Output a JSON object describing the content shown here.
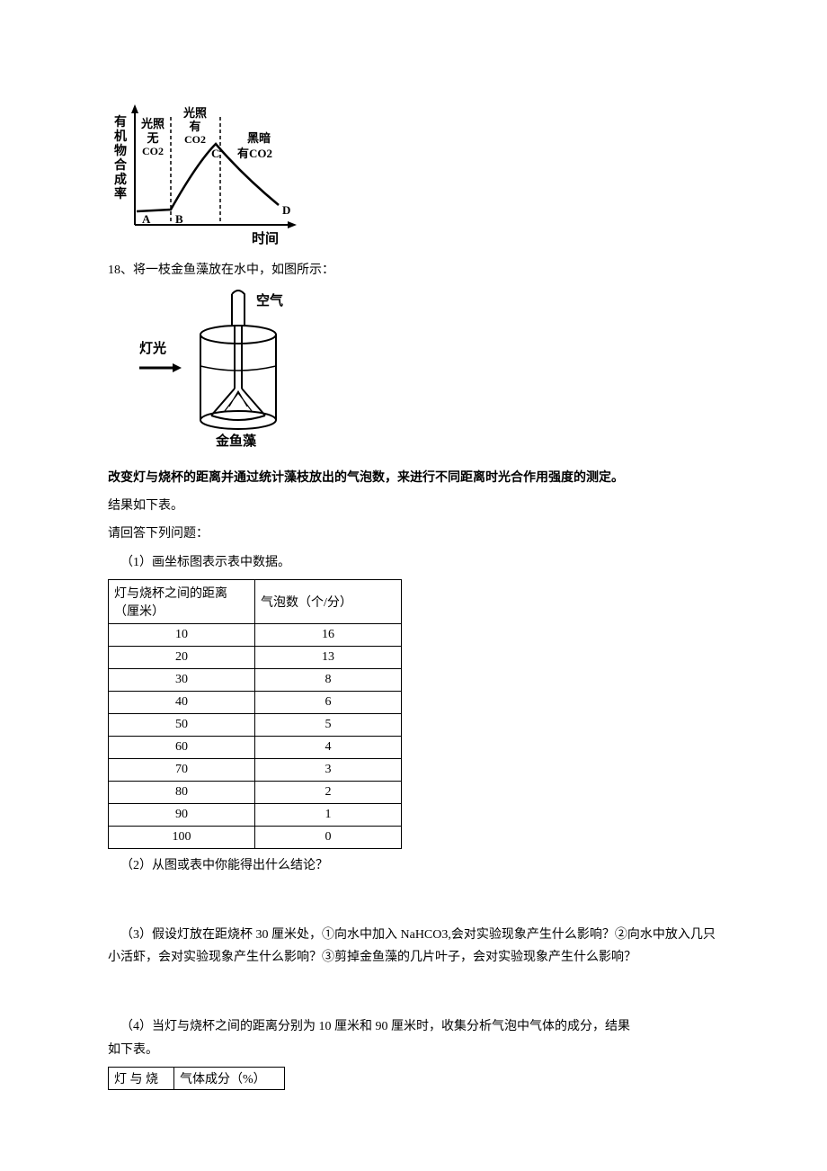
{
  "chart1": {
    "y_axis_label": "有机物合成率",
    "x_axis_label": "时间",
    "region1_top": "光照",
    "region1_bottom": "无",
    "region1_sub": "CO2",
    "region2_top": "光照",
    "region2_mid": "有",
    "region2_sub": "CO2",
    "region3_top": "黑暗",
    "region3_bottom": "有CO2",
    "pointA": "A",
    "pointB": "B",
    "pointC": "C",
    "pointD": "D"
  },
  "q18_intro": "18、将一枝金鱼藻放在水中，如图所示：",
  "apparatus": {
    "label_air": "空气",
    "label_light": "灯光",
    "label_algae": "金鱼藻"
  },
  "line_bold": "改变灯与烧杯的距离并通过统计藻枝放出的气泡数，来进行不同距离时光合作用强度的测定。",
  "line_result": "结果如下表。",
  "line_please": "请回答下列问题：",
  "q1": "（1）画坐标图表示表中数据。",
  "table1": {
    "head_col1_line1": "灯与烧杯之间的距离",
    "head_col1_line2": "（厘米）",
    "head_col2": "气泡数（个/分）",
    "rows": [
      {
        "d": "10",
        "b": "16"
      },
      {
        "d": "20",
        "b": "13"
      },
      {
        "d": "30",
        "b": "8"
      },
      {
        "d": "40",
        "b": "6"
      },
      {
        "d": "50",
        "b": "5"
      },
      {
        "d": "60",
        "b": "4"
      },
      {
        "d": "70",
        "b": "3"
      },
      {
        "d": "80",
        "b": "2"
      },
      {
        "d": "90",
        "b": "1"
      },
      {
        "d": "100",
        "b": "0"
      }
    ]
  },
  "q2": "（2）从图或表中你能得出什么结论？",
  "q3": "（3）假设灯放在距烧杯 30 厘米处，①向水中加入 NaHCO3,会对实验现象产生什么影响？②向水中放入几只小活虾，会对实验现象产生什么影响？③剪掉金鱼藻的几片叶子，会对实验现象产生什么影响？",
  "q4_line1": "（4）当灯与烧杯之间的距离分别为 10 厘米和 90 厘米时，收集分析气泡中气体的成分，结果",
  "q4_line2": "如下表。",
  "table2": {
    "c1": "灯 与 烧",
    "c2": "气体成分（%）"
  }
}
